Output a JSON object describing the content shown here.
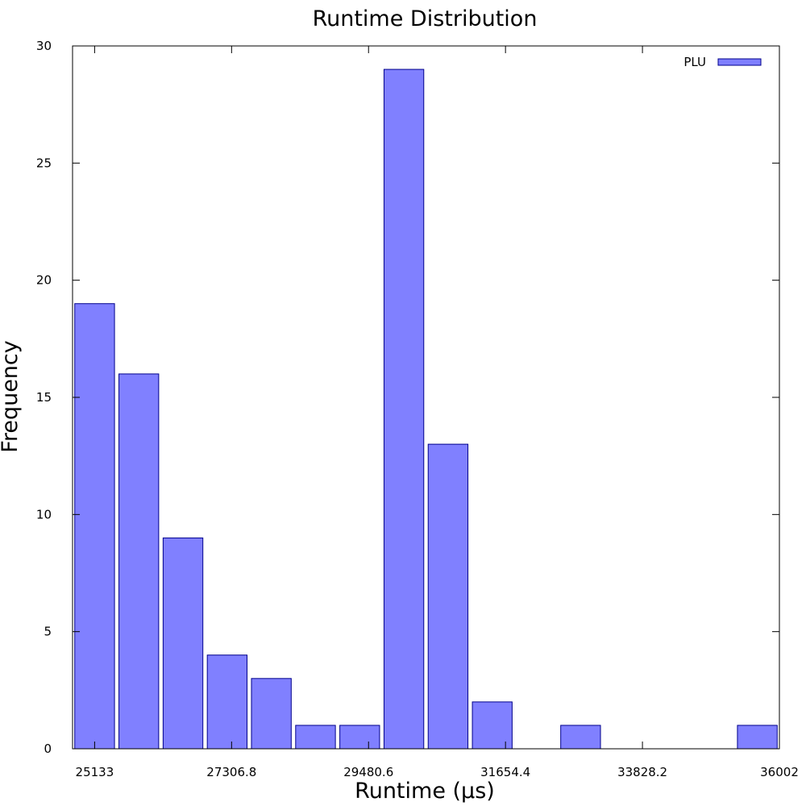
{
  "chart_data": {
    "type": "bar",
    "title": "Runtime Distribution",
    "xlabel": "Runtime (µs)",
    "ylabel": "Frequency",
    "x_tick_labels": [
      "25133",
      "27306.8",
      "29480.6",
      "31654.4",
      "33828.2",
      "36002"
    ],
    "y_ticks": [
      0,
      5,
      10,
      15,
      20,
      25,
      30
    ],
    "ylim": [
      0,
      30
    ],
    "series": [
      {
        "name": "PLU",
        "values": [
          19,
          16,
          9,
          4,
          3,
          1,
          1,
          29,
          13,
          2,
          0,
          1,
          0,
          0,
          0,
          1
        ]
      }
    ],
    "bar_color": "#8080ff",
    "bar_edge_color": "#00008b",
    "legend_position": "top-right",
    "grid": false
  }
}
